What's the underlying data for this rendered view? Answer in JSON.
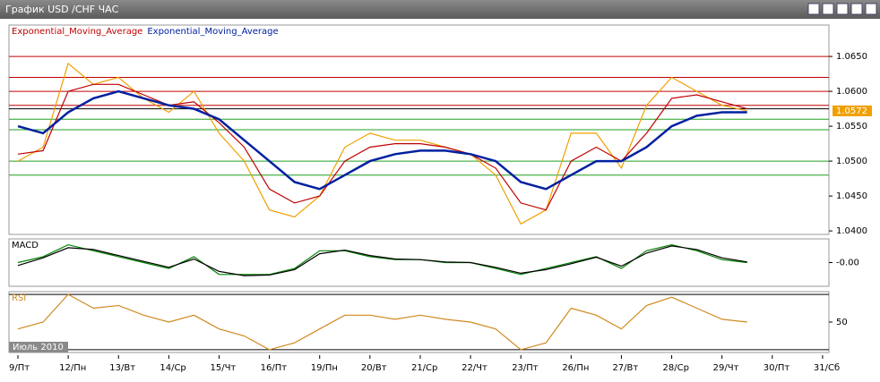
{
  "window": {
    "title": "График USD /CHF  ЧАС"
  },
  "chart_data": [
    {
      "type": "line",
      "categories": [
        "9/Пт",
        null,
        "12/Пн",
        null,
        "13/Вт",
        null,
        "14/Ср",
        null,
        "15/Чт",
        null,
        "16/Пт",
        null,
        "19/Пн",
        null,
        "20/Вт",
        null,
        "21/Ср",
        null,
        "22/Чт",
        null,
        "23/Пт",
        null,
        "26/Пн",
        null,
        "27/Вт",
        null,
        "28/Ср",
        null,
        "29/Чт",
        null,
        "30/Пт",
        null,
        "31/Сб"
      ],
      "series": [
        {
          "color": "#f0a000",
          "values": [
            1.05,
            1.052,
            1.064,
            1.061,
            1.062,
            1.059,
            1.057,
            1.06,
            1.054,
            1.05,
            1.043,
            1.042,
            1.045,
            1.052,
            1.054,
            1.053,
            1.053,
            1.052,
            1.051,
            1.048,
            1.041,
            1.043,
            1.054,
            1.054,
            1.049,
            1.058,
            1.062,
            1.06,
            1.058,
            1.0572,
            null,
            null,
            null
          ]
        },
        {
          "name": "Exponential_Moving_Average",
          "color": "#c00000",
          "values": [
            1.051,
            1.0515,
            1.06,
            1.061,
            1.061,
            1.0595,
            1.058,
            1.0585,
            1.0555,
            1.052,
            1.046,
            1.044,
            1.045,
            1.05,
            1.052,
            1.0525,
            1.0525,
            1.052,
            1.051,
            1.049,
            1.044,
            1.043,
            1.05,
            1.052,
            1.05,
            1.054,
            1.059,
            1.0595,
            1.0585,
            1.0575,
            null,
            null,
            null
          ]
        },
        {
          "name": "Exponential_Moving_Average",
          "color": "#0020a0",
          "values": [
            1.055,
            1.054,
            1.057,
            1.059,
            1.06,
            1.059,
            1.058,
            1.0575,
            1.056,
            1.053,
            1.05,
            1.047,
            1.046,
            1.048,
            1.05,
            1.051,
            1.0515,
            1.0515,
            1.051,
            1.05,
            1.047,
            1.046,
            1.048,
            1.05,
            1.05,
            1.052,
            1.055,
            1.0565,
            1.057,
            1.057,
            null,
            null,
            null
          ]
        }
      ],
      "ylim": [
        1.0395,
        1.0695
      ],
      "yticks": [
        {
          "value": 1.065,
          "label": "1.0650"
        },
        {
          "value": 1.06,
          "label": "1.0600"
        },
        {
          "value": 1.055,
          "label": "1.0550"
        },
        {
          "value": 1.05,
          "label": "1.0500"
        },
        {
          "value": 1.045,
          "label": "1.0450"
        },
        {
          "value": 1.04,
          "label": "1.0400"
        }
      ],
      "levels": [
        {
          "value": 1.065,
          "color": "#c00000"
        },
        {
          "value": 1.062,
          "color": "#c00000"
        },
        {
          "value": 1.06,
          "color": "#c00000"
        },
        {
          "value": 1.058,
          "color": "#c00000"
        },
        {
          "value": 1.0575,
          "color": "#000000"
        },
        {
          "value": 1.056,
          "color": "#20a020"
        },
        {
          "value": 1.0545,
          "color": "#20a020"
        },
        {
          "value": 1.05,
          "color": "#20a020"
        },
        {
          "value": 1.048,
          "color": "#20a020"
        }
      ],
      "last_price": 1.0572
    },
    {
      "type": "line",
      "title": "MACD",
      "series": [
        {
          "color": "#008000",
          "values": [
            0,
            0.001,
            0.003,
            0.002,
            0.001,
            0,
            -0.001,
            0.001,
            -0.002,
            -0.002,
            -0.002,
            -0.001,
            0.002,
            0.002,
            0.001,
            0.0005,
            0.0005,
            0,
            0,
            -0.001,
            -0.002,
            -0.001,
            0,
            0.001,
            -0.001,
            0.002,
            0.003,
            0.002,
            0.0005,
            0,
            null,
            null,
            null
          ]
        },
        {
          "color": "#000000",
          "values": [
            -0.0005,
            0.0008,
            0.0025,
            0.0022,
            0.0012,
            0.0002,
            -0.0008,
            0.0006,
            -0.0015,
            -0.0022,
            -0.0021,
            -0.0012,
            0.0015,
            0.0021,
            0.0012,
            0.0006,
            0.0005,
            0.0001,
            0,
            -0.0008,
            -0.0018,
            -0.0012,
            -0.0002,
            0.0009,
            -0.0006,
            0.0016,
            0.0028,
            0.0022,
            0.0008,
            0.0001,
            null,
            null,
            null
          ]
        }
      ],
      "ylim": [
        -0.004,
        0.004
      ],
      "yticks": [
        {
          "value": 0,
          "label": "-0.00"
        }
      ]
    },
    {
      "type": "line",
      "title": "RSI",
      "series": [
        {
          "color": "#d08a20",
          "values": [
            45,
            50,
            70,
            60,
            62,
            55,
            50,
            55,
            45,
            40,
            30,
            35,
            45,
            55,
            55,
            52,
            55,
            52,
            50,
            45,
            30,
            35,
            60,
            55,
            45,
            62,
            68,
            60,
            52,
            50,
            null,
            null,
            null
          ]
        }
      ],
      "ylim": [
        28,
        72
      ],
      "yticks": [
        50
      ],
      "levels": [
        {
          "value": 70,
          "color": "#000000"
        },
        {
          "value": 30,
          "color": "#000000"
        }
      ],
      "period_label": "Июль 2010"
    }
  ]
}
